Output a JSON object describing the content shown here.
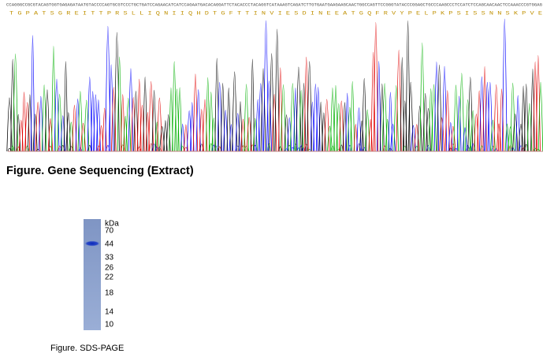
{
  "sequencing": {
    "nucleotides": "CCAGGGCCGCGTACAGTGGTGAGAGATAATGTACCCCAGTGCGTCCCTGCTGATCCAGAACATCATCCAGAATGACACAGGATTCTACACCCTACAGGTCATAAAGTCAGATCTTGTGAATGAAGAAGCAACTGGCCAGTTCCGGGTATACCCGGAGCTGCCCAAGCCCTCCATCTCCAGCAACAACTCCAAACCCGTGGAG",
    "amino_acids": "T G P A T S G R E I T T P R S L L I Q N I I Q H D T G F T T I N V I E S D I N E E A T G Q F R V Y P E L P K P S I S S N N S K P V E",
    "caption": "Figure. Gene Sequencing (Extract)"
  },
  "gel": {
    "unit": "kDa",
    "markers": [
      "70",
      "44",
      "33",
      "26",
      "22",
      "18",
      "14",
      "10"
    ],
    "caption": "Figure. SDS-PAGE"
  }
}
